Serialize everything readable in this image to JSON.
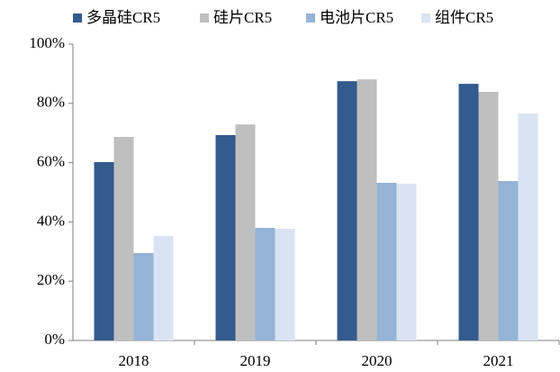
{
  "chart_data": {
    "type": "bar",
    "categories": [
      "2018",
      "2019",
      "2020",
      "2021"
    ],
    "series": [
      {
        "name": "多晶硅CR5",
        "color": "#335b8e",
        "values": [
          60.2,
          69.3,
          87.5,
          86.6
        ]
      },
      {
        "name": "硅片CR5",
        "color": "#bfbfbf",
        "values": [
          68.7,
          72.9,
          88.1,
          83.9
        ]
      },
      {
        "name": "电池片CR5",
        "color": "#94b3d7",
        "values": [
          29.5,
          38,
          53.2,
          53.8
        ]
      },
      {
        "name": "组件CR5",
        "color": "#dae3f3",
        "values": [
          35.3,
          37.7,
          52.9,
          76.6
        ]
      }
    ],
    "ylim": [
      0,
      100
    ],
    "yticks": [
      {
        "value": 0,
        "label": "0%"
      },
      {
        "value": 20,
        "label": "20%"
      },
      {
        "value": 40,
        "label": "40%"
      },
      {
        "value": 60,
        "label": "60%"
      },
      {
        "value": 80,
        "label": "80%"
      },
      {
        "value": 100,
        "label": "100%"
      }
    ],
    "legend": "top"
  }
}
